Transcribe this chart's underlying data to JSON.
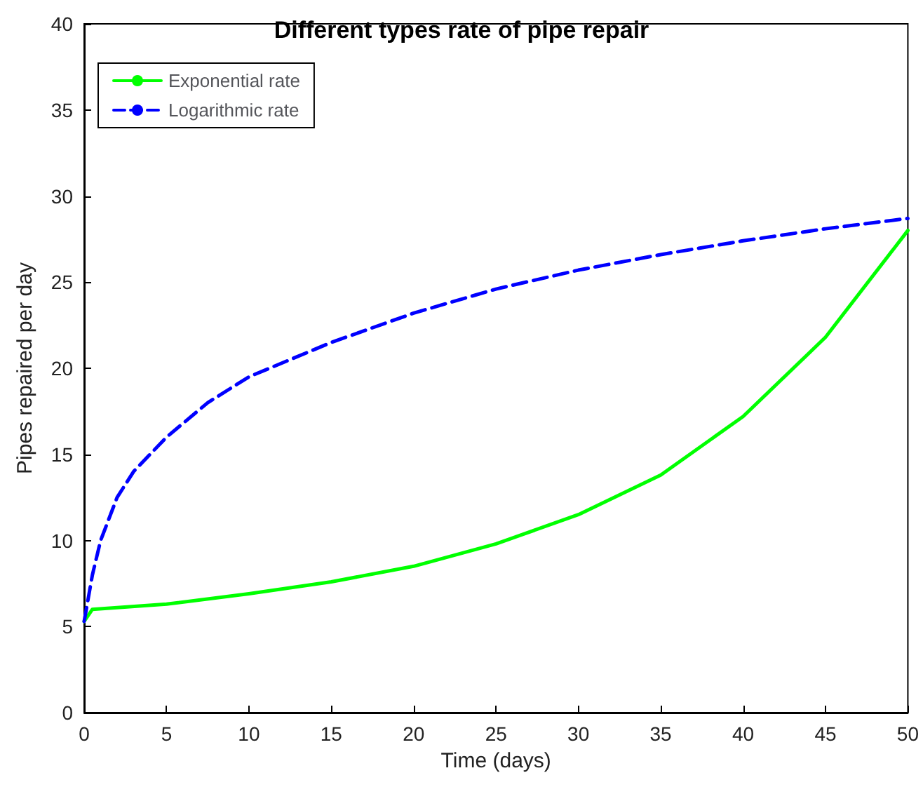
{
  "chart_data": {
    "type": "line",
    "title": "Different types rate of pipe repair",
    "xlabel": "Time (days)",
    "ylabel": "Pipes repaired per day",
    "xlim": [
      0,
      50
    ],
    "xticks": [
      0,
      5,
      10,
      15,
      20,
      25,
      30,
      35,
      40,
      45,
      50
    ],
    "ylim": [
      0,
      40
    ],
    "yticks": [
      0,
      5,
      10,
      15,
      20,
      25,
      30,
      35,
      40
    ],
    "grid": false,
    "legend": "top left",
    "marker": "none",
    "series": [
      {
        "name": "Exponential rate",
        "color": "#00ff00",
        "line_style": "solid",
        "x": [
          0,
          0.5,
          5,
          10,
          15,
          20,
          25,
          30,
          35,
          40,
          45,
          50
        ],
        "values": [
          5.3,
          6.0,
          6.3,
          6.9,
          7.6,
          8.5,
          9.8,
          11.5,
          13.8,
          17.2,
          21.8,
          28
        ]
      },
      {
        "name": "Logarithmic rate",
        "color": "#0000ff",
        "line_style": "dashed",
        "x": [
          0,
          0.5,
          1,
          2,
          3,
          5,
          7.5,
          10,
          15,
          20,
          25,
          30,
          35,
          40,
          45,
          50
        ],
        "values": [
          5.3,
          8,
          10,
          12.5,
          14,
          16,
          18,
          19.5,
          21.5,
          23.2,
          24.6,
          25.7,
          26.6,
          27.4,
          28.1,
          28.7
        ]
      }
    ]
  }
}
